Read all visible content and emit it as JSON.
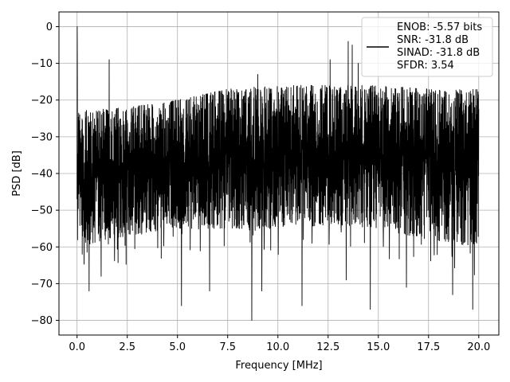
{
  "chart_data": {
    "type": "line",
    "title": "",
    "xlabel": "Frequency [MHz]",
    "ylabel": "PSD [dB]",
    "xlim": [
      -0.9,
      21.0
    ],
    "ylim": [
      -84,
      4
    ],
    "xticks": [
      0.0,
      2.5,
      5.0,
      7.5,
      10.0,
      12.5,
      15.0,
      17.5,
      20.0
    ],
    "xtick_labels": [
      "0.0",
      "2.5",
      "5.0",
      "7.5",
      "10.0",
      "12.5",
      "15.0",
      "17.5",
      "20.0"
    ],
    "yticks": [
      0,
      -10,
      -20,
      -30,
      -40,
      -50,
      -60,
      -70,
      -80
    ],
    "ytick_labels": [
      "0",
      "−10",
      "−20",
      "−30",
      "−40",
      "−50",
      "−60",
      "−70",
      "−80"
    ],
    "grid": true,
    "legend_position": "top-right",
    "series": [
      {
        "color": "#000000",
        "x_range": [
          0.0,
          20.0
        ],
        "noise_ceiling": [
          [
            0.0,
            -23
          ],
          [
            2.5,
            -22
          ],
          [
            5.0,
            -20
          ],
          [
            7.5,
            -17
          ],
          [
            10.0,
            -16
          ],
          [
            12.5,
            -16
          ],
          [
            15.0,
            -16
          ],
          [
            17.5,
            -17
          ],
          [
            20.0,
            -17
          ]
        ],
        "noise_floor": [
          [
            0.0,
            -60
          ],
          [
            2.5,
            -57
          ],
          [
            5.0,
            -55
          ],
          [
            7.5,
            -55
          ],
          [
            10.0,
            -55
          ],
          [
            12.5,
            -54
          ],
          [
            15.0,
            -55
          ],
          [
            17.5,
            -58
          ],
          [
            20.0,
            -60
          ]
        ],
        "peaks": [
          [
            0.02,
            0
          ],
          [
            1.6,
            -9
          ],
          [
            9.0,
            -13
          ],
          [
            12.6,
            -9
          ],
          [
            13.5,
            -4
          ],
          [
            13.7,
            -5
          ],
          [
            14.0,
            -10
          ],
          [
            14.6,
            -11
          ]
        ],
        "dips": [
          [
            0.6,
            -72
          ],
          [
            1.2,
            -68
          ],
          [
            5.2,
            -76
          ],
          [
            6.6,
            -72
          ],
          [
            8.7,
            -80
          ],
          [
            9.2,
            -72
          ],
          [
            11.2,
            -76
          ],
          [
            13.4,
            -69
          ],
          [
            14.6,
            -77
          ],
          [
            16.4,
            -71
          ],
          [
            18.7,
            -73
          ],
          [
            19.7,
            -77
          ]
        ]
      }
    ],
    "legend_lines": [
      "ENOB: -5.57 bits",
      "SNR: -31.8 dB",
      "SINAD: -31.8 dB",
      "SFDR: 3.54"
    ]
  }
}
